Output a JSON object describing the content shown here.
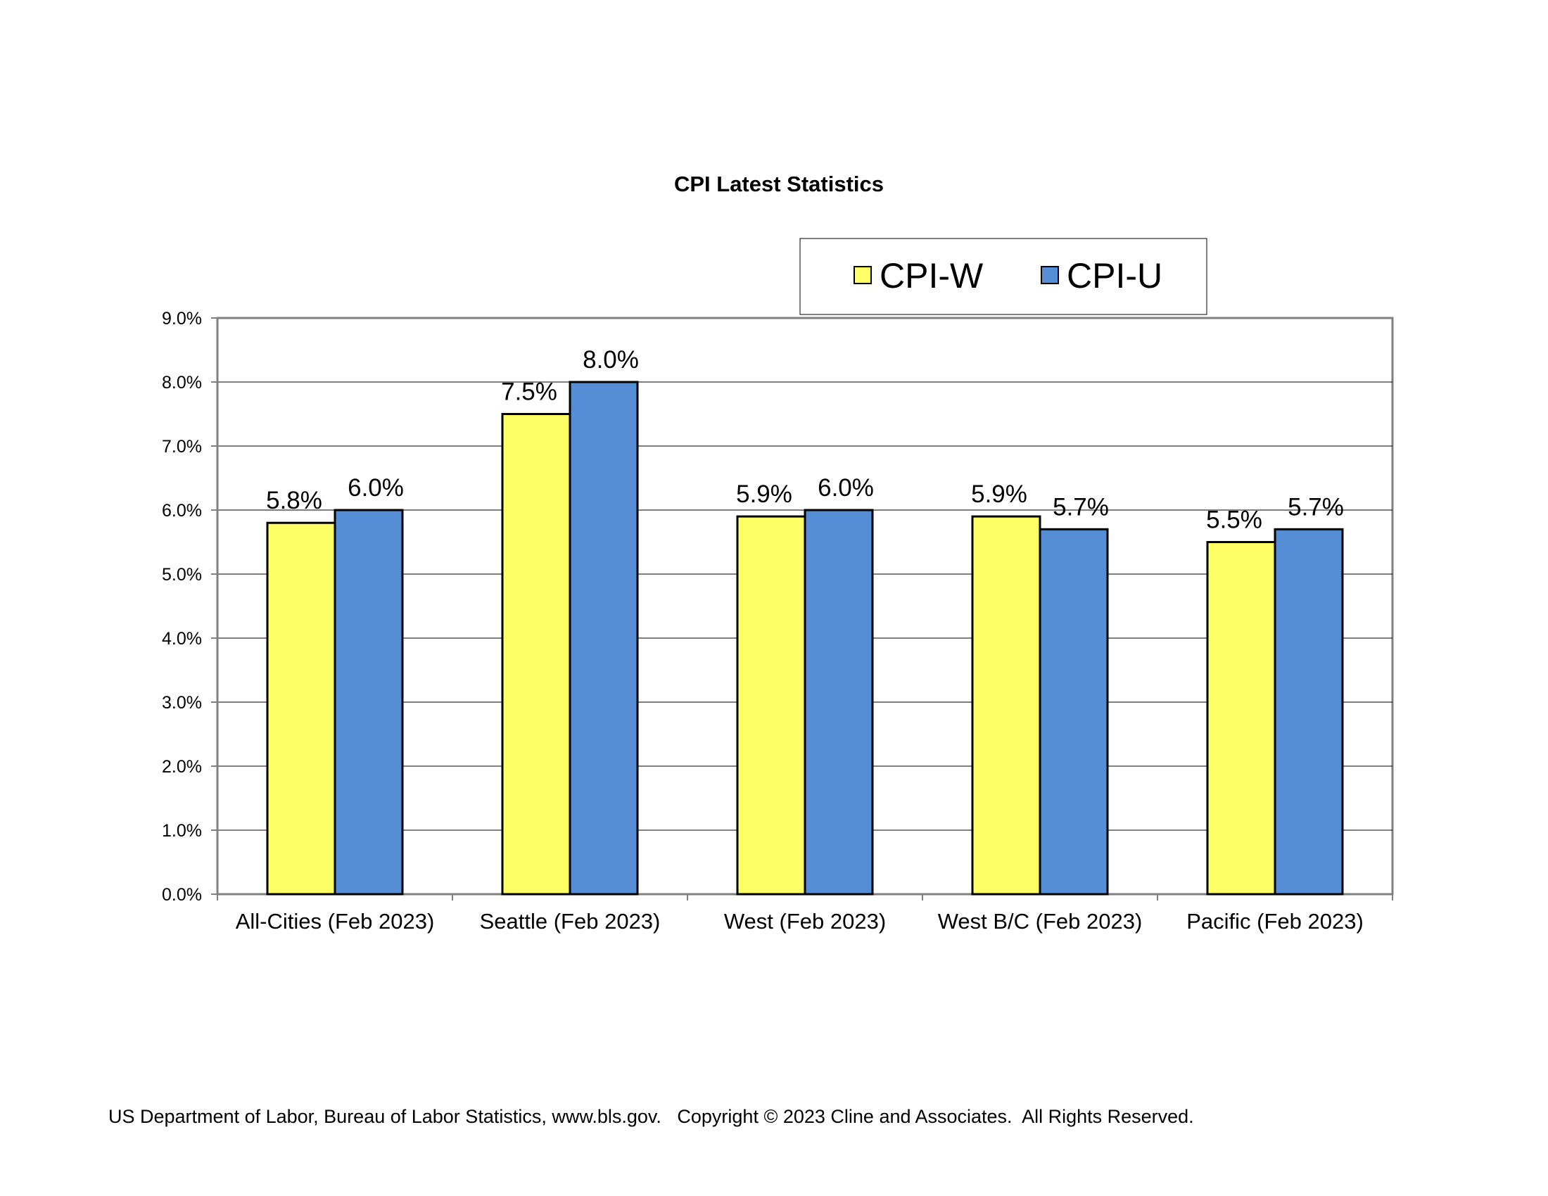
{
  "chart_data": {
    "type": "bar",
    "title": "CPI Latest Statistics",
    "xlabel": "",
    "ylabel": "",
    "categories": [
      "All-Cities (Feb 2023)",
      "Seattle (Feb 2023)",
      "West (Feb 2023)",
      "West B/C (Feb 2023)",
      "Pacific (Feb 2023)"
    ],
    "series": [
      {
        "name": "CPI-W",
        "color": "#FFFF66",
        "values": [
          5.8,
          7.5,
          5.9,
          5.9,
          5.5
        ],
        "labels": [
          "5.8%",
          "7.5%",
          "5.9%",
          "5.9%",
          "5.5%"
        ]
      },
      {
        "name": "CPI-U",
        "color": "#558ED5",
        "values": [
          6.0,
          8.0,
          6.0,
          5.7,
          5.7
        ],
        "labels": [
          "6.0%",
          "8.0%",
          "6.0%",
          "5.7%",
          "5.7%"
        ]
      }
    ],
    "ylim": [
      0,
      9
    ],
    "yticks": [
      "0.0%",
      "1.0%",
      "2.0%",
      "3.0%",
      "4.0%",
      "5.0%",
      "6.0%",
      "7.0%",
      "8.0%",
      "9.0%"
    ],
    "grid": true,
    "legend": "top-right"
  },
  "footer": {
    "source": "US Department of Labor, Bureau of Labor Statistics, www.bls.gov.   Copyright © 2023 Cline and Associates.  All Rights Reserved."
  }
}
